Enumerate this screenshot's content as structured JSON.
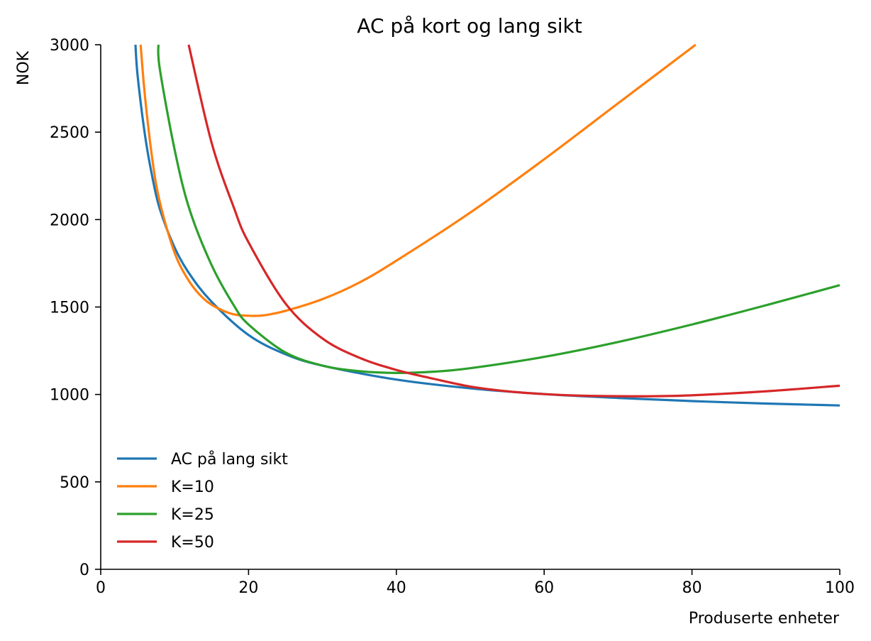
{
  "chart_data": {
    "type": "line",
    "title": "AC på kort og lang sikt",
    "xlabel": "Produserte enheter",
    "ylabel": "NOK",
    "xlim": [
      0,
      100
    ],
    "ylim": [
      0,
      3000
    ],
    "xticks": [
      0,
      20,
      40,
      60,
      80,
      100
    ],
    "yticks": [
      0,
      500,
      1000,
      1500,
      2000,
      2500,
      3000
    ],
    "grid": false,
    "legend_position": "lower-left",
    "series": [
      {
        "name": "AC på lang sikt",
        "color": "#1f77b4",
        "x": [
          4.7,
          5,
          6,
          7,
          8,
          10,
          12,
          15,
          20,
          25,
          30,
          40,
          50,
          60,
          70,
          80,
          90,
          100
        ],
        "y": [
          3000,
          2820,
          2480,
          2240,
          2060,
          1840,
          1690,
          1530,
          1340,
          1230,
          1165,
          1085,
          1035,
          1002,
          980,
          962,
          948,
          937
        ]
      },
      {
        "name": "K=10",
        "color": "#ff7f0e",
        "x": [
          5.4,
          6,
          7,
          8,
          10,
          12,
          14,
          16,
          18,
          20,
          22,
          25,
          30,
          35,
          40,
          50,
          60,
          70,
          80.5
        ],
        "y": [
          3000,
          2700,
          2340,
          2100,
          1810,
          1645,
          1545,
          1490,
          1458,
          1450,
          1452,
          1478,
          1545,
          1640,
          1765,
          2040,
          2345,
          2665,
          3000
        ]
      },
      {
        "name": "K=25",
        "color": "#2ca02c",
        "x": [
          7.8,
          8,
          10,
          12,
          15,
          18,
          20,
          25,
          30,
          35,
          40,
          45,
          50,
          60,
          70,
          80,
          90,
          100
        ],
        "y": [
          3000,
          2860,
          2400,
          2060,
          1740,
          1510,
          1400,
          1240,
          1165,
          1133,
          1123,
          1130,
          1150,
          1215,
          1300,
          1400,
          1510,
          1625
        ]
      },
      {
        "name": "K=50",
        "color": "#d62728",
        "x": [
          11.9,
          15,
          18,
          20,
          25,
          30,
          35,
          40,
          45,
          50,
          55,
          60,
          65,
          70,
          75,
          80,
          90,
          100
        ],
        "y": [
          3000,
          2440,
          2070,
          1870,
          1520,
          1320,
          1210,
          1140,
          1090,
          1045,
          1018,
          1002,
          993,
          990,
          990,
          995,
          1018,
          1050
        ]
      }
    ]
  }
}
